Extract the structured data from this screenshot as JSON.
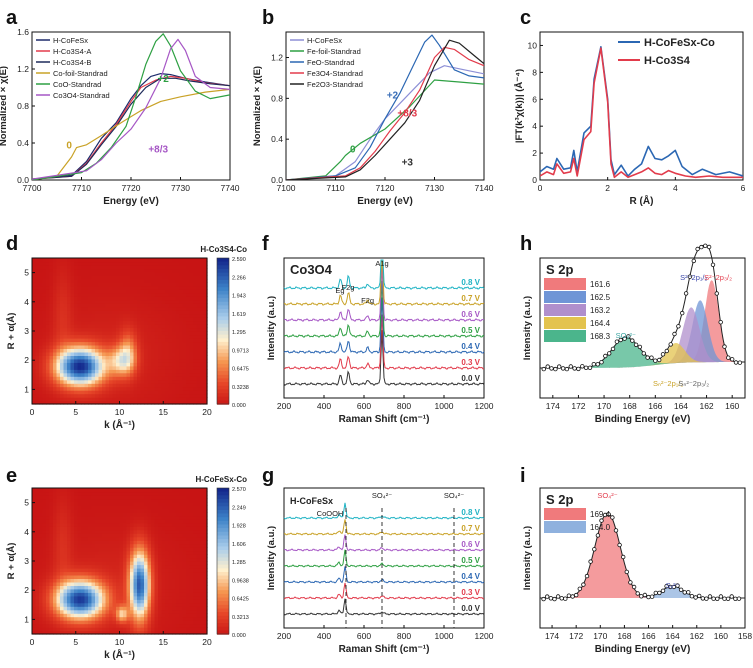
{
  "panel_letters": [
    "a",
    "b",
    "c",
    "d",
    "e",
    "f",
    "g",
    "h",
    "i"
  ],
  "chart_data": [
    {
      "id": "a",
      "type": "line",
      "xlabel": "Energy (eV)",
      "ylabel": "Normalized × χ(E)",
      "xlim": [
        7700,
        7740
      ],
      "ylim": [
        0,
        1.6
      ],
      "xticks": [
        7700,
        7710,
        7720,
        7730,
        7740
      ],
      "yticks": [
        0.0,
        0.4,
        0.8,
        1.2,
        1.6
      ],
      "legend": "top-left",
      "annotations": [
        {
          "text": "0",
          "x": 7707.5,
          "y": 0.34,
          "color": "#c9a227"
        },
        {
          "text": "+2",
          "x": 7726.5,
          "y": 1.06,
          "color": "#2ea043"
        },
        {
          "text": "+8/3",
          "x": 7725.5,
          "y": 0.3,
          "color": "#a657c5"
        }
      ],
      "series": [
        {
          "name": "H-CoFeSx",
          "color": "#1d2b6b",
          "x": [
            7700,
            7708,
            7711,
            7714,
            7717,
            7720,
            7722,
            7724,
            7726,
            7728,
            7731,
            7735,
            7740
          ],
          "y": [
            0.01,
            0.05,
            0.2,
            0.45,
            0.62,
            0.88,
            1.02,
            1.12,
            1.15,
            1.14,
            1.1,
            1.06,
            1.02
          ]
        },
        {
          "name": "H-Co3S4-A",
          "color": "#e23b4b",
          "x": [
            7700,
            7708,
            7711,
            7714,
            7717,
            7720,
            7722,
            7725,
            7728,
            7731,
            7735,
            7740
          ],
          "y": [
            0.01,
            0.04,
            0.18,
            0.4,
            0.6,
            0.85,
            1.0,
            1.08,
            1.12,
            1.1,
            1.05,
            1.02
          ]
        },
        {
          "name": "H-Co3S4-B",
          "color": "#1e2a5a",
          "x": [
            7700,
            7708,
            7711,
            7714,
            7717,
            7720,
            7723,
            7726,
            7729,
            7732,
            7736,
            7740
          ],
          "y": [
            0.01,
            0.04,
            0.17,
            0.38,
            0.58,
            0.82,
            1.0,
            1.1,
            1.1,
            1.07,
            1.04,
            1.02
          ]
        },
        {
          "name": "Co-foil-Standrad",
          "color": "#c9a227",
          "x": [
            7700,
            7705,
            7708,
            7709,
            7711,
            7714,
            7718,
            7722,
            7726,
            7730,
            7735,
            7740
          ],
          "y": [
            0.0,
            0.04,
            0.25,
            0.35,
            0.38,
            0.48,
            0.62,
            0.75,
            0.85,
            0.9,
            0.95,
            0.98
          ]
        },
        {
          "name": "CoO-Standrad",
          "color": "#2ea043",
          "x": [
            7700,
            7710,
            7713,
            7716,
            7719,
            7721,
            7723,
            7725,
            7726.5,
            7728,
            7730,
            7733,
            7736,
            7740
          ],
          "y": [
            0.0,
            0.08,
            0.18,
            0.35,
            0.58,
            0.9,
            1.25,
            1.5,
            1.58,
            1.45,
            1.18,
            0.96,
            0.88,
            0.92
          ]
        },
        {
          "name": "Co3O4-Standrad",
          "color": "#a657c5",
          "x": [
            7700,
            7711,
            7714,
            7717,
            7720,
            7723,
            7726,
            7728,
            7729.5,
            7731,
            7733,
            7736,
            7740
          ],
          "y": [
            0.01,
            0.1,
            0.22,
            0.4,
            0.55,
            0.78,
            1.1,
            1.42,
            1.52,
            1.4,
            1.12,
            1.0,
            0.98
          ]
        }
      ]
    },
    {
      "id": "b",
      "type": "line",
      "xlabel": "Energy (eV)",
      "ylabel": "Normalized × χ(E)",
      "xlim": [
        7100,
        7140
      ],
      "ylim": [
        0,
        1.45
      ],
      "xticks": [
        7100,
        7110,
        7120,
        7130,
        7140
      ],
      "yticks": [
        0.0,
        0.4,
        0.8,
        1.2
      ],
      "legend": "top-left",
      "annotations": [
        {
          "text": "0",
          "x": 7113.5,
          "y": 0.27,
          "color": "#2ea043"
        },
        {
          "text": "+2",
          "x": 7121.5,
          "y": 0.8,
          "color": "#3b6fb8"
        },
        {
          "text": "+8/3",
          "x": 7124.5,
          "y": 0.62,
          "color": "#e23b4b"
        },
        {
          "text": "+3",
          "x": 7124.5,
          "y": 0.14,
          "color": "#333333"
        }
      ],
      "series": [
        {
          "name": "H-CoFeSx",
          "color": "#8d8fd6",
          "x": [
            7100,
            7110,
            7114,
            7117,
            7120,
            7123,
            7126,
            7129,
            7132,
            7136,
            7140
          ],
          "y": [
            0.0,
            0.04,
            0.18,
            0.4,
            0.6,
            0.75,
            0.9,
            1.05,
            1.12,
            1.08,
            1.04
          ]
        },
        {
          "name": "Fe-foil-Standrad",
          "color": "#2ea043",
          "x": [
            7100,
            7108,
            7111,
            7112,
            7115,
            7120,
            7125,
            7130,
            7135,
            7140
          ],
          "y": [
            0.0,
            0.04,
            0.18,
            0.24,
            0.36,
            0.5,
            0.72,
            0.98,
            0.96,
            0.94
          ]
        },
        {
          "name": "FeO-Standrad",
          "color": "#2b67b3",
          "x": [
            7100,
            7110,
            7114,
            7117,
            7120,
            7123,
            7126,
            7128,
            7129.5,
            7131,
            7134,
            7137,
            7140
          ],
          "y": [
            0.0,
            0.04,
            0.12,
            0.32,
            0.6,
            0.85,
            1.15,
            1.35,
            1.42,
            1.32,
            1.08,
            1.02,
            1.0
          ]
        },
        {
          "name": "Fe3O4-Standrad",
          "color": "#e23b4b",
          "x": [
            7100,
            7112,
            7115,
            7118,
            7121,
            7124,
            7127,
            7130,
            7132,
            7134,
            7137,
            7140
          ],
          "y": [
            0.0,
            0.04,
            0.12,
            0.28,
            0.48,
            0.66,
            0.88,
            1.2,
            1.3,
            1.28,
            1.18,
            1.12
          ]
        },
        {
          "name": "Fe2O3-Standrad",
          "color": "#222222",
          "x": [
            7100,
            7112,
            7115,
            7118,
            7121,
            7124,
            7127,
            7130,
            7133,
            7135,
            7138,
            7140
          ],
          "y": [
            0.0,
            0.03,
            0.1,
            0.24,
            0.4,
            0.56,
            0.78,
            1.12,
            1.37,
            1.34,
            1.22,
            1.14
          ]
        }
      ]
    },
    {
      "id": "c",
      "type": "line",
      "xlabel": "R (Å)",
      "ylabel": "|FT(k³χ(k))| (Å⁻⁴)",
      "xlim": [
        0,
        6
      ],
      "ylim": [
        0,
        11
      ],
      "xticks": [
        0,
        2,
        4,
        6
      ],
      "yticks": [
        0,
        2,
        4,
        6,
        8,
        10
      ],
      "legend": "top-right",
      "series": [
        {
          "name": "H-CoFeSx-Co",
          "color": "#2b67b3",
          "x": [
            0,
            0.2,
            0.4,
            0.5,
            0.7,
            0.9,
            1.0,
            1.1,
            1.3,
            1.5,
            1.6,
            1.8,
            2.0,
            2.1,
            2.2,
            2.4,
            2.6,
            2.8,
            3.0,
            3.2,
            3.4,
            3.6,
            3.8,
            4.0,
            4.2,
            4.5,
            4.8,
            5.2,
            5.6,
            6.0
          ],
          "y": [
            0.6,
            1.0,
            0.8,
            1.6,
            0.8,
            0.9,
            2.2,
            0.6,
            3.5,
            4.0,
            7.5,
            9.9,
            6.0,
            1.5,
            0.4,
            1.1,
            0.3,
            0.8,
            1.2,
            2.5,
            1.6,
            1.5,
            1.8,
            2.2,
            1.0,
            0.4,
            0.8,
            0.4,
            0.6,
            0.3
          ]
        },
        {
          "name": "H-Co3S4",
          "color": "#e23b4b",
          "x": [
            0,
            0.2,
            0.4,
            0.5,
            0.7,
            0.9,
            1.0,
            1.1,
            1.3,
            1.5,
            1.6,
            1.8,
            2.0,
            2.1,
            2.2,
            2.4,
            2.6,
            2.8,
            3.0,
            3.2,
            3.4,
            3.6,
            3.8,
            4.0,
            4.3,
            4.6,
            5.0,
            5.4,
            5.8,
            6.0
          ],
          "y": [
            0.3,
            0.6,
            0.4,
            1.2,
            0.5,
            0.6,
            1.6,
            0.3,
            3.0,
            3.6,
            7.2,
            9.8,
            5.8,
            1.2,
            0.2,
            0.6,
            0.2,
            0.4,
            0.6,
            0.9,
            0.5,
            0.4,
            0.7,
            0.5,
            0.3,
            0.2,
            0.3,
            0.2,
            0.2,
            0.2
          ]
        }
      ]
    },
    {
      "id": "d",
      "type": "heatmap",
      "title": "H-Co3S4-Co",
      "xlabel": "k (Å⁻¹)",
      "ylabel": "R + α(Å)",
      "xlim": [
        0,
        20
      ],
      "ylim": [
        0.5,
        5.5
      ],
      "xticks": [
        0,
        5,
        10,
        15,
        20
      ],
      "yticks": [
        1,
        2,
        3,
        4,
        5
      ],
      "colorbar_ticks": [
        "2.590",
        "2.266",
        "1.943",
        "1.619",
        "1.295",
        "0.9713",
        "0.6475",
        "0.3238",
        "0.000"
      ],
      "peaks": [
        {
          "k": 5.5,
          "r": 1.8,
          "amp": 2.5,
          "sk": 1.9,
          "sr": 0.45
        },
        {
          "k": 10.2,
          "r": 2.0,
          "amp": 0.9,
          "sk": 1.0,
          "sr": 0.35
        },
        {
          "k": 11.0,
          "r": 2.3,
          "amp": 0.6,
          "sk": 0.7,
          "sr": 0.5
        }
      ]
    },
    {
      "id": "e",
      "type": "heatmap",
      "title": "H-CoFeSx-Co",
      "xlabel": "k (Å⁻¹)",
      "ylabel": "R + α(Å)",
      "xlim": [
        0,
        20
      ],
      "ylim": [
        0.5,
        5.5
      ],
      "xticks": [
        0,
        5,
        10,
        15,
        20
      ],
      "yticks": [
        1,
        2,
        3,
        4,
        5
      ],
      "colorbar_ticks": [
        "2.570",
        "2.249",
        "1.928",
        "1.606",
        "1.285",
        "0.9638",
        "0.6425",
        "0.3213",
        "0.000"
      ],
      "peaks": [
        {
          "k": 5.5,
          "r": 1.7,
          "amp": 2.4,
          "sk": 1.9,
          "sr": 0.45
        },
        {
          "k": 12.3,
          "r": 2.2,
          "amp": 2.2,
          "sk": 0.8,
          "sr": 0.8
        },
        {
          "k": 10.3,
          "r": 1.2,
          "amp": 0.9,
          "sk": 0.5,
          "sr": 0.2
        }
      ]
    },
    {
      "id": "f",
      "type": "line",
      "title": "Co3O4",
      "xlabel": "Raman Shift (cm⁻¹)",
      "ylabel": "Intensity (a.u.)",
      "xlim": [
        200,
        1200
      ],
      "xticks": [
        200,
        400,
        600,
        800,
        1000,
        1200
      ],
      "peak_labels": [
        {
          "text": "Eg",
          "x": 480
        },
        {
          "text": "F2g",
          "x": 520
        },
        {
          "text": "F2g",
          "x": 618
        },
        {
          "text": "A1g",
          "x": 690
        }
      ],
      "series": [
        {
          "name": "0.0 V",
          "color": "#333333"
        },
        {
          "name": "0.3 V",
          "color": "#e23b4b"
        },
        {
          "name": "0.4 V",
          "color": "#2b67b3"
        },
        {
          "name": "0.5 V",
          "color": "#2ea043"
        },
        {
          "name": "0.6 V",
          "color": "#a657c5"
        },
        {
          "name": "0.7 V",
          "color": "#c9a227"
        },
        {
          "name": "0.8 V",
          "color": "#1fb3c4"
        }
      ]
    },
    {
      "id": "g",
      "type": "line",
      "title": "H-CoFeSx",
      "xlabel": "Raman Shift (cm⁻¹)",
      "ylabel": "Intensity (a.u.)",
      "xlim": [
        200,
        1200
      ],
      "xticks": [
        200,
        400,
        600,
        800,
        1000,
        1200
      ],
      "annotations": [
        {
          "text": "CoOOH",
          "x": 430
        },
        {
          "text": "SO₄²⁻",
          "x": 690
        },
        {
          "text": "SO₄²⁻",
          "x": 1050
        }
      ],
      "dashed_lines": [
        510,
        690,
        1050
      ],
      "series": [
        {
          "name": "0.0 V",
          "color": "#333333"
        },
        {
          "name": "0.3 V",
          "color": "#e23b4b"
        },
        {
          "name": "0.4 V",
          "color": "#2b67b3"
        },
        {
          "name": "0.5 V",
          "color": "#2ea043"
        },
        {
          "name": "0.6 V",
          "color": "#a657c5"
        },
        {
          "name": "0.7 V",
          "color": "#c9a227"
        },
        {
          "name": "0.8 V",
          "color": "#1fb3c4"
        }
      ]
    },
    {
      "id": "h",
      "type": "area",
      "title": "S 2p",
      "xlabel": "Binding Energy (eV)",
      "ylabel": "Intensity (a.u.)",
      "xlim": [
        175,
        159
      ],
      "xticks": [
        174,
        172,
        170,
        168,
        166,
        164,
        162,
        160
      ],
      "legend": "top-left",
      "annotations": [
        {
          "text": "SO₄²⁻",
          "x": 168.3,
          "color": "#3aa3a0"
        },
        {
          "text": "S²⁻2p₁/₂",
          "x": 163.0,
          "color": "#3a46a8"
        },
        {
          "text": "S²⁻2p₃/₂",
          "x": 161.1,
          "color": "#e23b4b"
        },
        {
          "text": "Sₙ²⁻2p₁/₂",
          "x": 165.0,
          "color": "#c9a227"
        },
        {
          "text": "Sₙ²⁻2p₃/₂",
          "x": 163.0,
          "color": "#666666"
        }
      ],
      "components": [
        {
          "name": "161.6",
          "center": 161.6,
          "amp": 0.82,
          "sigma": 0.55,
          "color": "#f07a7c"
        },
        {
          "name": "162.5",
          "center": 162.5,
          "amp": 0.62,
          "sigma": 0.6,
          "color": "#6f95d6"
        },
        {
          "name": "163.2",
          "center": 163.2,
          "amp": 0.55,
          "sigma": 0.65,
          "color": "#b08fcc"
        },
        {
          "name": "164.4",
          "center": 164.4,
          "amp": 0.2,
          "sigma": 0.7,
          "color": "#e3c34e"
        },
        {
          "name": "168.3",
          "center": 168.3,
          "amp": 0.3,
          "sigma": 1.1,
          "color": "#4bb58c"
        }
      ]
    },
    {
      "id": "i",
      "type": "area",
      "title": "S 2p",
      "xlabel": "Binding Energy (eV)",
      "ylabel": "Intensity (a.u.)",
      "xlim": [
        175,
        158
      ],
      "xticks": [
        174,
        172,
        170,
        168,
        166,
        164,
        162,
        160,
        158
      ],
      "legend": "top-left",
      "annotations": [
        {
          "text": "SO₄²⁻",
          "x": 169.4,
          "color": "#e23b4b"
        },
        {
          "text": "Sₓ²⁻",
          "x": 164.0,
          "color": "#3a46a8"
        }
      ],
      "components": [
        {
          "name": "169.4",
          "center": 169.4,
          "amp": 0.85,
          "sigma": 1.05,
          "color": "#f07a7c"
        },
        {
          "name": "164.0",
          "center": 164.0,
          "amp": 0.12,
          "sigma": 0.9,
          "color": "#8fb1de"
        }
      ]
    }
  ]
}
